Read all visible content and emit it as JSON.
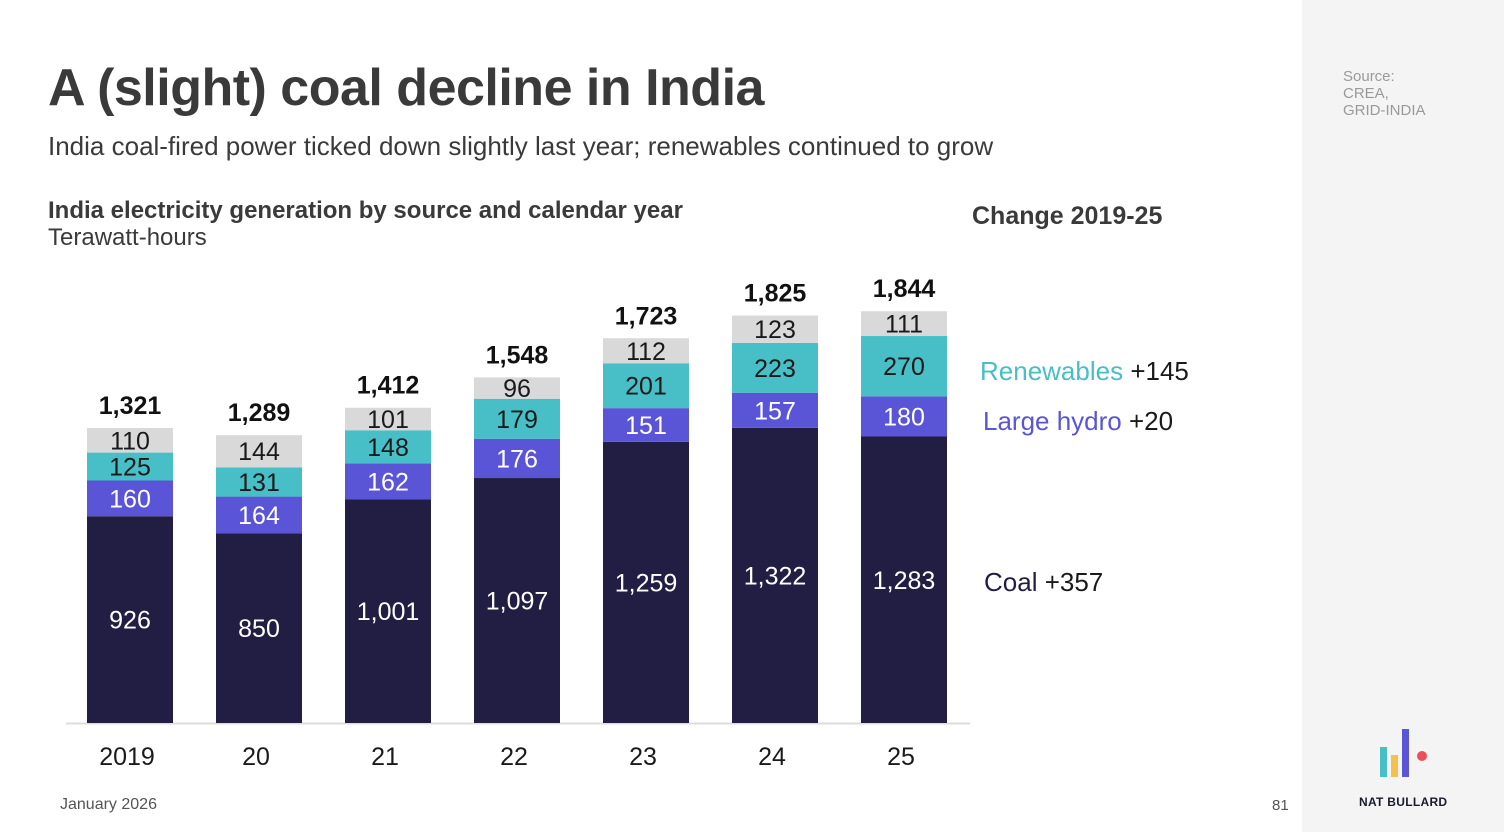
{
  "slide": {
    "title": "A (slight) coal decline in India",
    "subtitle": "India coal-fired power ticked down slightly last year; renewables continued to grow",
    "source_lines": [
      "Source:",
      "CREA,",
      "GRID-INDIA"
    ],
    "footer_date": "January 2026",
    "page_number": "81",
    "brand": "NAT BULLARD"
  },
  "colors": {
    "coal": "#221d43",
    "large_hydro": "#5a55d6",
    "renewables": "#48bfc6",
    "other": "#d9d9d9",
    "total_label": "#111111",
    "logo_bar_1": "#48bfc6",
    "logo_bar_2": "#f2c14e",
    "logo_bar_3": "#5a55d6",
    "logo_dot": "#ee4d5c"
  },
  "chart_data": {
    "type": "bar",
    "stacked": true,
    "title": "India electricity generation by source and calendar year",
    "unit_label": "Terawatt-hours",
    "categories": [
      "2019",
      "20",
      "21",
      "22",
      "23",
      "24",
      "25"
    ],
    "series": [
      {
        "name": "Coal",
        "key": "coal",
        "values": [
          926,
          850,
          1001,
          1097,
          1259,
          1322,
          1283
        ],
        "labels": [
          "926",
          "850",
          "1,001",
          "1,097",
          "1,259",
          "1,322",
          "1,283"
        ]
      },
      {
        "name": "Large hydro",
        "key": "large_hydro",
        "values": [
          160,
          164,
          162,
          176,
          151,
          157,
          180
        ],
        "labels": [
          "160",
          "164",
          "162",
          "176",
          "151",
          "157",
          "180"
        ]
      },
      {
        "name": "Renewables",
        "key": "renewables",
        "values": [
          125,
          131,
          148,
          179,
          201,
          223,
          270
        ],
        "labels": [
          "125",
          "131",
          "148",
          "179",
          "201",
          "223",
          "270"
        ]
      },
      {
        "key": "other",
        "values": [
          110,
          144,
          101,
          96,
          112,
          123,
          111
        ],
        "labels": [
          "110",
          "144",
          "101",
          "96",
          "112",
          "123",
          "111"
        ]
      }
    ],
    "totals": [
      1321,
      1289,
      1412,
      1548,
      1723,
      1825,
      1844
    ],
    "total_labels": [
      "1,321",
      "1,289",
      "1,412",
      "1,548",
      "1,723",
      "1,825",
      "1,844"
    ],
    "ylim": [
      0,
      1844
    ],
    "grid": false,
    "change_heading": "Change 2019-25",
    "change_labels": [
      {
        "key": "renewables",
        "name": "Renewables",
        "value": "+145"
      },
      {
        "key": "large_hydro",
        "name": "Large hydro",
        "value": "+20"
      },
      {
        "key": "coal",
        "name": "Coal",
        "value": "+357"
      }
    ]
  }
}
